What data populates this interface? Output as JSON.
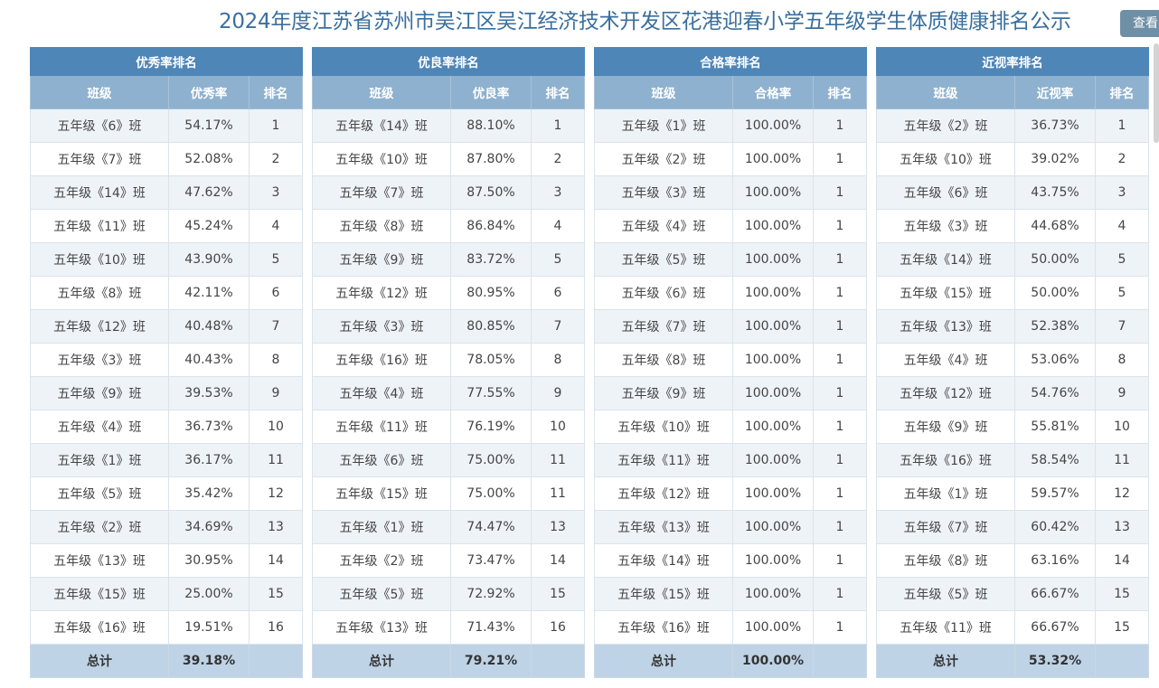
{
  "title": "2024年度江苏省苏州市吴江区吴江经济技术开发区花港迎春小学五年级学生体质健康排名公示",
  "view_button": "查看",
  "panels": [
    {
      "title": "优秀率排名",
      "headers": [
        "班级",
        "优秀率",
        "排名"
      ],
      "rows": [
        [
          "五年级《6》班",
          "54.17%",
          "1"
        ],
        [
          "五年级《7》班",
          "52.08%",
          "2"
        ],
        [
          "五年级《14》班",
          "47.62%",
          "3"
        ],
        [
          "五年级《11》班",
          "45.24%",
          "4"
        ],
        [
          "五年级《10》班",
          "43.90%",
          "5"
        ],
        [
          "五年级《8》班",
          "42.11%",
          "6"
        ],
        [
          "五年级《12》班",
          "40.48%",
          "7"
        ],
        [
          "五年级《3》班",
          "40.43%",
          "8"
        ],
        [
          "五年级《9》班",
          "39.53%",
          "9"
        ],
        [
          "五年级《4》班",
          "36.73%",
          "10"
        ],
        [
          "五年级《1》班",
          "36.17%",
          "11"
        ],
        [
          "五年级《5》班",
          "35.42%",
          "12"
        ],
        [
          "五年级《2》班",
          "34.69%",
          "13"
        ],
        [
          "五年级《13》班",
          "30.95%",
          "14"
        ],
        [
          "五年级《15》班",
          "25.00%",
          "15"
        ],
        [
          "五年级《16》班",
          "19.51%",
          "16"
        ]
      ],
      "total_label": "总计",
      "total_value": "39.18%"
    },
    {
      "title": "优良率排名",
      "headers": [
        "班级",
        "优良率",
        "排名"
      ],
      "rows": [
        [
          "五年级《14》班",
          "88.10%",
          "1"
        ],
        [
          "五年级《10》班",
          "87.80%",
          "2"
        ],
        [
          "五年级《7》班",
          "87.50%",
          "3"
        ],
        [
          "五年级《8》班",
          "86.84%",
          "4"
        ],
        [
          "五年级《9》班",
          "83.72%",
          "5"
        ],
        [
          "五年级《12》班",
          "80.95%",
          "6"
        ],
        [
          "五年级《3》班",
          "80.85%",
          "7"
        ],
        [
          "五年级《16》班",
          "78.05%",
          "8"
        ],
        [
          "五年级《4》班",
          "77.55%",
          "9"
        ],
        [
          "五年级《11》班",
          "76.19%",
          "10"
        ],
        [
          "五年级《6》班",
          "75.00%",
          "11"
        ],
        [
          "五年级《15》班",
          "75.00%",
          "11"
        ],
        [
          "五年级《1》班",
          "74.47%",
          "13"
        ],
        [
          "五年级《2》班",
          "73.47%",
          "14"
        ],
        [
          "五年级《5》班",
          "72.92%",
          "15"
        ],
        [
          "五年级《13》班",
          "71.43%",
          "16"
        ]
      ],
      "total_label": "总计",
      "total_value": "79.21%"
    },
    {
      "title": "合格率排名",
      "headers": [
        "班级",
        "合格率",
        "排名"
      ],
      "rows": [
        [
          "五年级《1》班",
          "100.00%",
          "1"
        ],
        [
          "五年级《2》班",
          "100.00%",
          "1"
        ],
        [
          "五年级《3》班",
          "100.00%",
          "1"
        ],
        [
          "五年级《4》班",
          "100.00%",
          "1"
        ],
        [
          "五年级《5》班",
          "100.00%",
          "1"
        ],
        [
          "五年级《6》班",
          "100.00%",
          "1"
        ],
        [
          "五年级《7》班",
          "100.00%",
          "1"
        ],
        [
          "五年级《8》班",
          "100.00%",
          "1"
        ],
        [
          "五年级《9》班",
          "100.00%",
          "1"
        ],
        [
          "五年级《10》班",
          "100.00%",
          "1"
        ],
        [
          "五年级《11》班",
          "100.00%",
          "1"
        ],
        [
          "五年级《12》班",
          "100.00%",
          "1"
        ],
        [
          "五年级《13》班",
          "100.00%",
          "1"
        ],
        [
          "五年级《14》班",
          "100.00%",
          "1"
        ],
        [
          "五年级《15》班",
          "100.00%",
          "1"
        ],
        [
          "五年级《16》班",
          "100.00%",
          "1"
        ]
      ],
      "total_label": "总计",
      "total_value": "100.00%"
    },
    {
      "title": "近视率排名",
      "headers": [
        "班级",
        "近视率",
        "排名"
      ],
      "rows": [
        [
          "五年级《2》班",
          "36.73%",
          "1"
        ],
        [
          "五年级《10》班",
          "39.02%",
          "2"
        ],
        [
          "五年级《6》班",
          "43.75%",
          "3"
        ],
        [
          "五年级《3》班",
          "44.68%",
          "4"
        ],
        [
          "五年级《14》班",
          "50.00%",
          "5"
        ],
        [
          "五年级《15》班",
          "50.00%",
          "5"
        ],
        [
          "五年级《13》班",
          "52.38%",
          "7"
        ],
        [
          "五年级《4》班",
          "53.06%",
          "8"
        ],
        [
          "五年级《12》班",
          "54.76%",
          "9"
        ],
        [
          "五年级《9》班",
          "55.81%",
          "10"
        ],
        [
          "五年级《16》班",
          "58.54%",
          "11"
        ],
        [
          "五年级《1》班",
          "59.57%",
          "12"
        ],
        [
          "五年级《7》班",
          "60.42%",
          "13"
        ],
        [
          "五年级《8》班",
          "63.16%",
          "14"
        ],
        [
          "五年级《5》班",
          "66.67%",
          "15"
        ],
        [
          "五年级《11》班",
          "66.67%",
          "15"
        ]
      ],
      "total_label": "总计",
      "total_value": "53.32%"
    }
  ]
}
